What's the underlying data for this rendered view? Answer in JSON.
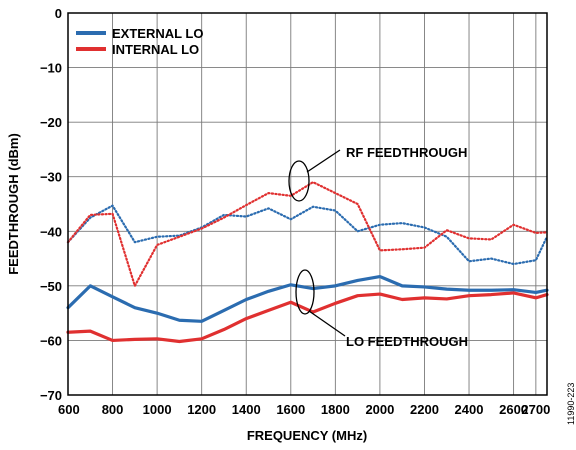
{
  "chart_data": {
    "type": "line",
    "xlabel": "FREQUENCY (MHz)",
    "ylabel": "FEEDTHROUGH (dBm)",
    "xlim": [
      600,
      2750
    ],
    "ylim": [
      -70,
      0
    ],
    "x_ticks": [
      600,
      800,
      1000,
      1200,
      1400,
      1600,
      1800,
      2000,
      2200,
      2400,
      2600,
      2700
    ],
    "y_ticks": [
      0,
      -10,
      -20,
      -30,
      -40,
      -50,
      -60,
      -70
    ],
    "y_tick_labels": [
      "0",
      "−10",
      "−20",
      "−30",
      "−40",
      "−50",
      "−60",
      "−70"
    ],
    "grid": true,
    "legend": "top-left",
    "legend_entries": [
      {
        "name": "EXTERNAL LO",
        "color": "#2b6cb0"
      },
      {
        "name": "INTERNAL LO",
        "color": "#e03030"
      }
    ],
    "annotations": {
      "rf": "RF FEEDTHROUGH",
      "lo": "LO FEEDTHROUGH"
    },
    "figure_id": "11990-223",
    "x": [
      600,
      700,
      800,
      900,
      1000,
      1100,
      1200,
      1300,
      1400,
      1500,
      1600,
      1700,
      1800,
      1900,
      2000,
      2100,
      2200,
      2300,
      2400,
      2500,
      2600,
      2700,
      2750
    ],
    "series": [
      {
        "legend_index": 0,
        "kind": "lo",
        "style": "solid",
        "values": [
          -54,
          -50,
          -52,
          -54,
          -55,
          -56.3,
          -56.5,
          -54.5,
          -52.5,
          -51,
          -49.8,
          -50.5,
          -50,
          -49,
          -48.3,
          -50,
          -50.2,
          -50.6,
          -50.8,
          -50.8,
          -50.7,
          -51.2,
          -50.8
        ]
      },
      {
        "legend_index": 1,
        "kind": "lo",
        "style": "solid",
        "values": [
          -58.5,
          -58.3,
          -60,
          -59.8,
          -59.7,
          -60.2,
          -59.7,
          -58,
          -56,
          -54.5,
          -53,
          -54.8,
          -53.2,
          -51.8,
          -51.5,
          -52.5,
          -52.2,
          -52.4,
          -51.8,
          -51.6,
          -51.3,
          -52.2,
          -51.6
        ]
      },
      {
        "legend_index": 0,
        "kind": "rf",
        "style": "dotted",
        "values": [
          -42,
          -37.5,
          -35.3,
          -42,
          -41,
          -40.8,
          -39.3,
          -37,
          -37.3,
          -35.8,
          -37.8,
          -35.5,
          -36.2,
          -40,
          -38.8,
          -38.5,
          -39.3,
          -41,
          -45.5,
          -45,
          -46,
          -45.3,
          -41
        ]
      },
      {
        "legend_index": 1,
        "kind": "rf",
        "style": "dotted",
        "values": [
          -42,
          -37,
          -36.8,
          -50,
          -42.5,
          -41,
          -39.5,
          -37.5,
          -35.2,
          -33,
          -33.5,
          -31,
          -33,
          -35,
          -43.5,
          -43.3,
          -43,
          -39.8,
          -41.3,
          -41.5,
          -38.8,
          -40.3,
          -40.2
        ]
      }
    ]
  }
}
